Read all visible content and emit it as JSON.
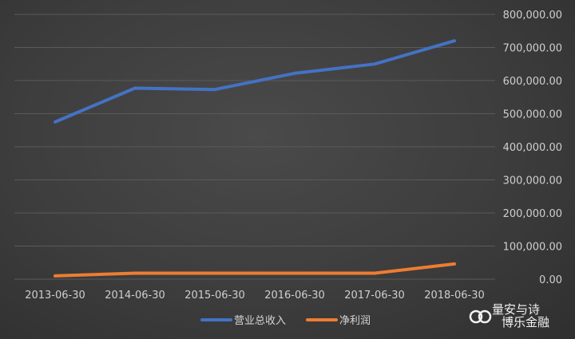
{
  "chart_data": {
    "type": "line",
    "title": "",
    "xlabel": "",
    "ylabel": "",
    "categories": [
      "2013-06-30",
      "2014-06-30",
      "2015-06-30",
      "2016-06-30",
      "2017-06-30",
      "2018-06-30"
    ],
    "series": [
      {
        "name": "营业总收入",
        "color": "#4472c4",
        "values": [
          475000,
          577000,
          573000,
          622000,
          650000,
          720000
        ]
      },
      {
        "name": "净利润",
        "color": "#ed7d31",
        "values": [
          10000,
          18000,
          18000,
          18000,
          18000,
          46000
        ]
      }
    ],
    "ylim": [
      0,
      800000
    ],
    "yticks": [
      "0.00",
      "100,000.00",
      "200,000.00",
      "300,000.00",
      "400,000.00",
      "500,000.00",
      "600,000.00",
      "700,000.00",
      "800,000.00"
    ],
    "grid": true,
    "legend": "bottom"
  },
  "watermark": {
    "icon": "chain-link-icon",
    "text": "量安与诗",
    "text2": "博乐金融"
  }
}
